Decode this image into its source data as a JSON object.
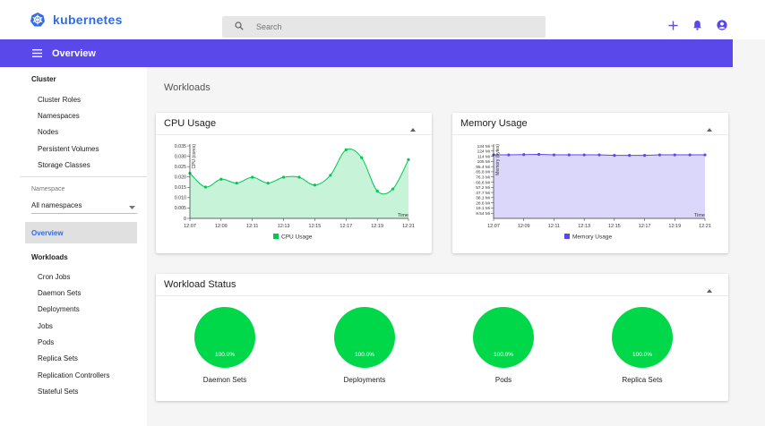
{
  "app": {
    "name": "kubernetes"
  },
  "search": {
    "placeholder": "Search"
  },
  "navbar": {
    "title": "Overview"
  },
  "sidebar": {
    "cluster_title": "Cluster",
    "cluster_items": [
      "Cluster Roles",
      "Namespaces",
      "Nodes",
      "Persistent Volumes",
      "Storage Classes"
    ],
    "namespace_label": "Namespace",
    "namespace_value": "All namespaces",
    "overview": "Overview",
    "workloads_title": "Workloads",
    "workload_items": [
      "Cron Jobs",
      "Daemon Sets",
      "Deployments",
      "Jobs",
      "Pods",
      "Replica Sets",
      "Replication Controllers",
      "Stateful Sets"
    ]
  },
  "main": {
    "title": "Workloads"
  },
  "cpu_card": {
    "title": "CPU Usage",
    "legend": "CPU Usage",
    "ylabel": "CPU (cores)",
    "xlabel": "Time",
    "color": "#00c853"
  },
  "mem_card": {
    "title": "Memory Usage",
    "legend": "Memory Usage",
    "ylabel": "Memory (bytes)",
    "xlabel": "Time",
    "color": "#5a48ea"
  },
  "status_card": {
    "title": "Workload Status"
  },
  "chart_data": [
    {
      "type": "area",
      "title": "CPU Usage",
      "xlabel": "Time",
      "ylabel": "CPU (cores)",
      "x_ticks": [
        "12:07",
        "12:09",
        "12:11",
        "12:13",
        "12:15",
        "12:17",
        "12:19",
        "12:21"
      ],
      "y_ticks": [
        "0",
        "0.005",
        "0.010",
        "0.015",
        "0.020",
        "0.025",
        "0.030",
        "0.035"
      ],
      "ylim": [
        0,
        0.037
      ],
      "series": [
        {
          "name": "CPU Usage",
          "x": [
            0,
            1,
            2,
            3,
            4,
            5,
            6,
            7,
            8,
            9,
            10,
            11,
            12,
            13,
            14
          ],
          "values": [
            0.023,
            0.016,
            0.02,
            0.018,
            0.021,
            0.018,
            0.021,
            0.021,
            0.017,
            0.022,
            0.035,
            0.031,
            0.014,
            0.015,
            0.03
          ]
        }
      ]
    },
    {
      "type": "area",
      "title": "Memory Usage",
      "xlabel": "Time",
      "ylabel": "Memory (bytes)",
      "x_ticks": [
        "12:07",
        "12:09",
        "12:11",
        "12:13",
        "12:15",
        "12:17",
        "12:19",
        "12:21"
      ],
      "y_ticks": [
        "9.54 Mi",
        "19.1 Mi",
        "28.6 Mi",
        "38.1 Mi",
        "47.7 Mi",
        "57.2 Mi",
        "66.8 Mi",
        "76.3 Mi",
        "85.8 Mi",
        "95.4 Mi",
        "105 Mi",
        "114 Mi",
        "124 Mi",
        "134 Mi"
      ],
      "ylim": [
        0,
        137
      ],
      "series": [
        {
          "name": "Memory Usage",
          "x": [
            0,
            1,
            2,
            3,
            4,
            5,
            6,
            7,
            8,
            9,
            10,
            11,
            12,
            13,
            14
          ],
          "values": [
            120,
            120,
            120.5,
            121,
            120,
            120,
            120,
            120,
            119,
            119,
            119,
            120,
            120,
            120,
            120
          ]
        }
      ]
    },
    {
      "type": "pie",
      "items": [
        {
          "name": "Daemon Sets",
          "value": "100.0%"
        },
        {
          "name": "Deployments",
          "value": "100.0%"
        },
        {
          "name": "Pods",
          "value": "100.0%"
        },
        {
          "name": "Replica Sets",
          "value": "100.0%"
        }
      ]
    }
  ]
}
